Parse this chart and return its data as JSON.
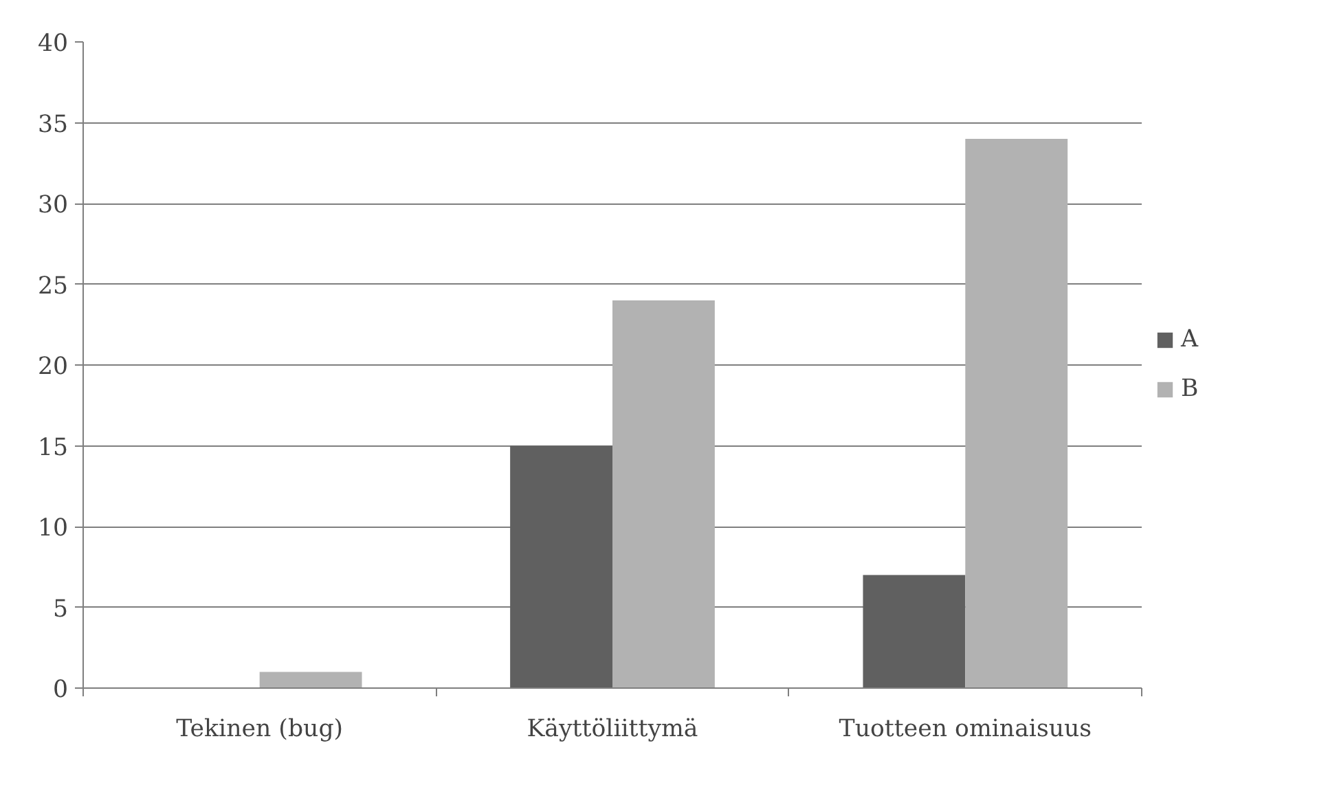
{
  "chart_data": {
    "type": "bar",
    "categories": [
      "Tekinen (bug)",
      "Käyttöliittymä",
      "Tuotteen ominaisuus"
    ],
    "series": [
      {
        "name": "A",
        "color": "#606060",
        "values": [
          0,
          15,
          7
        ]
      },
      {
        "name": "B",
        "color": "#b2b2b2",
        "values": [
          1,
          24,
          34
        ]
      }
    ],
    "ylim": [
      0,
      40
    ],
    "yticks": [
      0,
      5,
      10,
      15,
      20,
      25,
      30,
      35,
      40
    ],
    "grid": "y",
    "legend": "right"
  }
}
